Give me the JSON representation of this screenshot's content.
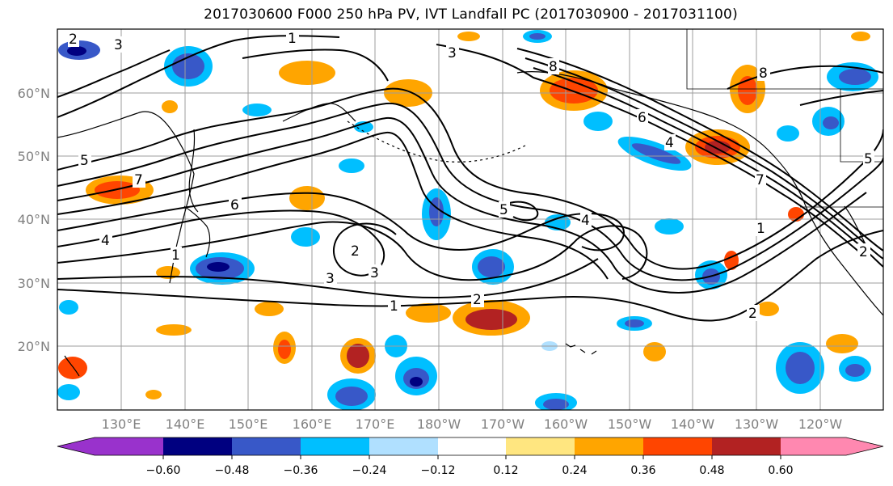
{
  "title": "2017030600 F000 250 hPa PV, IVT Landfall PC (2017030900 - 2017031100)",
  "map": {
    "lat_labels": [
      "60°N",
      "50°N",
      "40°N",
      "30°N",
      "20°N"
    ],
    "lon_labels": [
      "130°E",
      "140°E",
      "150°E",
      "160°E",
      "170°E",
      "180°W",
      "170°W",
      "160°W",
      "150°W",
      "140°W",
      "130°W",
      "120°W"
    ],
    "contour_labels": [
      "1",
      "2",
      "3",
      "4",
      "5",
      "6",
      "7",
      "8"
    ],
    "gridlines": true
  },
  "colorbar": {
    "ticks": [
      "−0.60",
      "−0.48",
      "−0.36",
      "−0.24",
      "−0.12",
      "0.12",
      "0.24",
      "0.36",
      "0.48",
      "0.60"
    ],
    "colors": [
      "#9932cc",
      "#000080",
      "#3858c8",
      "#00bfff",
      "#b0e0ff",
      "#ffffff",
      "#ffe680",
      "#ffa500",
      "#ff4500",
      "#b22222",
      "#ff88b0"
    ],
    "extend": "both"
  }
}
